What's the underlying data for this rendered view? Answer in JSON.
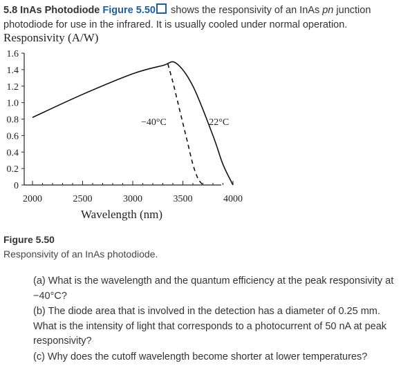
{
  "problem": {
    "number_title": "5.8 InAs Photodiode",
    "figure_link": "Figure 5.50",
    "text_part1": "shows the responsivity of an InAs",
    "text_italic": "pn",
    "text_part2": "junction photodiode for use in the infrared. It is usually cooled under normal operation."
  },
  "icons": {
    "figure_link_icon": "square-outline-icon"
  },
  "colors": {
    "link": "#1a5ea8",
    "text": "#333333"
  },
  "chart_data": {
    "type": "line",
    "title": "Responsivity (A/W)",
    "xlabel": "Wavelength (nm)",
    "ylabel": "Responsivity (A/W)",
    "xlim": [
      2000,
      4100
    ],
    "ylim": [
      0,
      1.6
    ],
    "x_ticks": [
      2000,
      2500,
      3000,
      3500,
      4000
    ],
    "y_ticks": [
      0,
      0.2,
      0.4,
      0.6,
      0.8,
      1.0,
      1.2,
      1.4,
      1.6
    ],
    "y_tick_labels": [
      "0",
      "0.2",
      "0.4",
      "0.6",
      "0.8",
      "1.0",
      "1.2",
      "1.4",
      "1.6"
    ],
    "series": [
      {
        "name": "22°C",
        "style": "solid",
        "x": [
          2000,
          2500,
          3000,
          3300,
          3430,
          3600,
          3800,
          3900,
          4000
        ],
        "y": [
          0.82,
          1.1,
          1.35,
          1.45,
          1.48,
          1.2,
          0.6,
          0.25,
          0.0
        ]
      },
      {
        "name": "-40°C",
        "style": "dashed",
        "x": [
          3350,
          3400,
          3450,
          3500,
          3550,
          3600,
          3650,
          3700
        ],
        "y": [
          1.47,
          1.25,
          1.0,
          0.75,
          0.5,
          0.25,
          0.08,
          0.0
        ]
      }
    ],
    "annotations": [
      {
        "text": "−40°C",
        "x": 3210,
        "y": 0.73
      },
      {
        "text": "22°C",
        "x": 3860,
        "y": 0.73
      }
    ],
    "grid": false,
    "legend": "none"
  },
  "figure": {
    "label": "Figure 5.50",
    "caption": "Responsivity of an InAs photodiode."
  },
  "questions": [
    "(a) What is the wavelength and the quantum efficiency at the peak responsivity at −40°C?",
    "(b) The diode area that is involved in the detection has a diameter of 0.25 mm. What is the intensity of light that corresponds to a photocurrent of 50 nA at peak responsivity?",
    "(c) Why does the cutoff wavelength become shorter at lower temperatures?"
  ]
}
